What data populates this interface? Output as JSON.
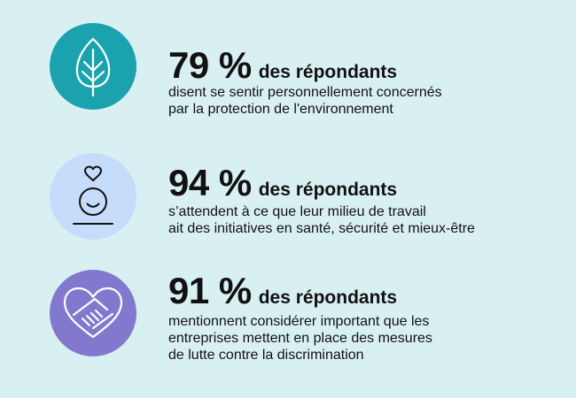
{
  "colors": {
    "background": "#d9f0f3",
    "circle_1": "#1aa3ae",
    "circle_2": "#c6dcfb",
    "circle_3": "#8279cf"
  },
  "stats": [
    {
      "icon": "leaf-icon",
      "percent": "79 %",
      "label": "des répondants",
      "lines": [
        "disent se sentir personnellement concernés",
        "par la protection de l'environnement"
      ]
    },
    {
      "icon": "wellbeing-person-icon",
      "percent": "94 %",
      "label": "des répondants",
      "lines": [
        "s’attendent à ce que leur milieu de travail",
        "ait des initiatives en santé, sécurité et mieux-être"
      ]
    },
    {
      "icon": "heart-handshake-icon",
      "percent": "91 %",
      "label": "des répondants",
      "lines": [
        "mentionnent considérer important que les",
        "entreprises mettent en place des mesures",
        "de lutte contre la discrimination"
      ]
    }
  ]
}
